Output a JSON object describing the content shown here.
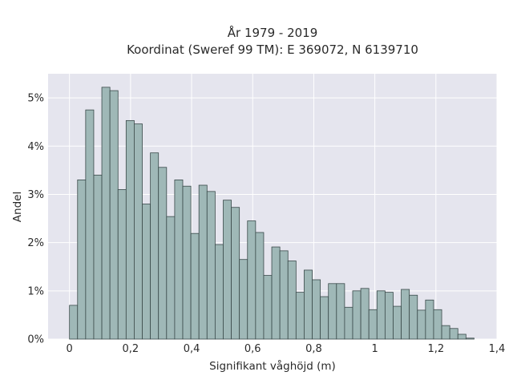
{
  "chart_data": {
    "type": "bar",
    "title_lines": [
      "År 1979 - 2019",
      "Koordinat (Sweref 99 TM): E 369072, N 6139710"
    ],
    "xlabel": "Signifikant våghöjd (m)",
    "ylabel": "Andel",
    "xlim": [
      -0.07,
      1.4
    ],
    "ylim": [
      0,
      5.5
    ],
    "x_ticks": [
      0,
      0.2,
      0.4,
      0.6,
      0.8,
      1.0,
      1.2,
      1.4
    ],
    "x_tick_labels": [
      "0",
      "0,2",
      "0,4",
      "0,6",
      "0,8",
      "1",
      "1,2",
      "1,4"
    ],
    "y_ticks": [
      0,
      1,
      2,
      3,
      4,
      5
    ],
    "y_tick_labels": [
      "0%",
      "1%",
      "2%",
      "3%",
      "4%",
      "5%"
    ],
    "bin_width": 0.0265,
    "bin_start": 0.0,
    "values": [
      0.7,
      3.3,
      4.75,
      3.4,
      5.22,
      5.15,
      3.1,
      4.53,
      4.46,
      2.8,
      3.86,
      3.56,
      2.54,
      3.3,
      3.17,
      2.19,
      3.19,
      3.06,
      1.96,
      2.88,
      2.73,
      1.65,
      2.45,
      2.21,
      1.32,
      1.91,
      1.83,
      1.62,
      0.97,
      1.43,
      1.23,
      0.88,
      1.15,
      1.15,
      0.66,
      1.0,
      1.05,
      0.61,
      1.0,
      0.97,
      0.68,
      1.03,
      0.91,
      0.6,
      0.81,
      0.61,
      0.28,
      0.22,
      0.1,
      0.02
    ],
    "grid": true,
    "colors": {
      "plot_background": "#e5e5ee",
      "bar_fill": "#9fb8b7",
      "bar_edge": "#3a4a4a",
      "grid": "#ffffff"
    }
  }
}
